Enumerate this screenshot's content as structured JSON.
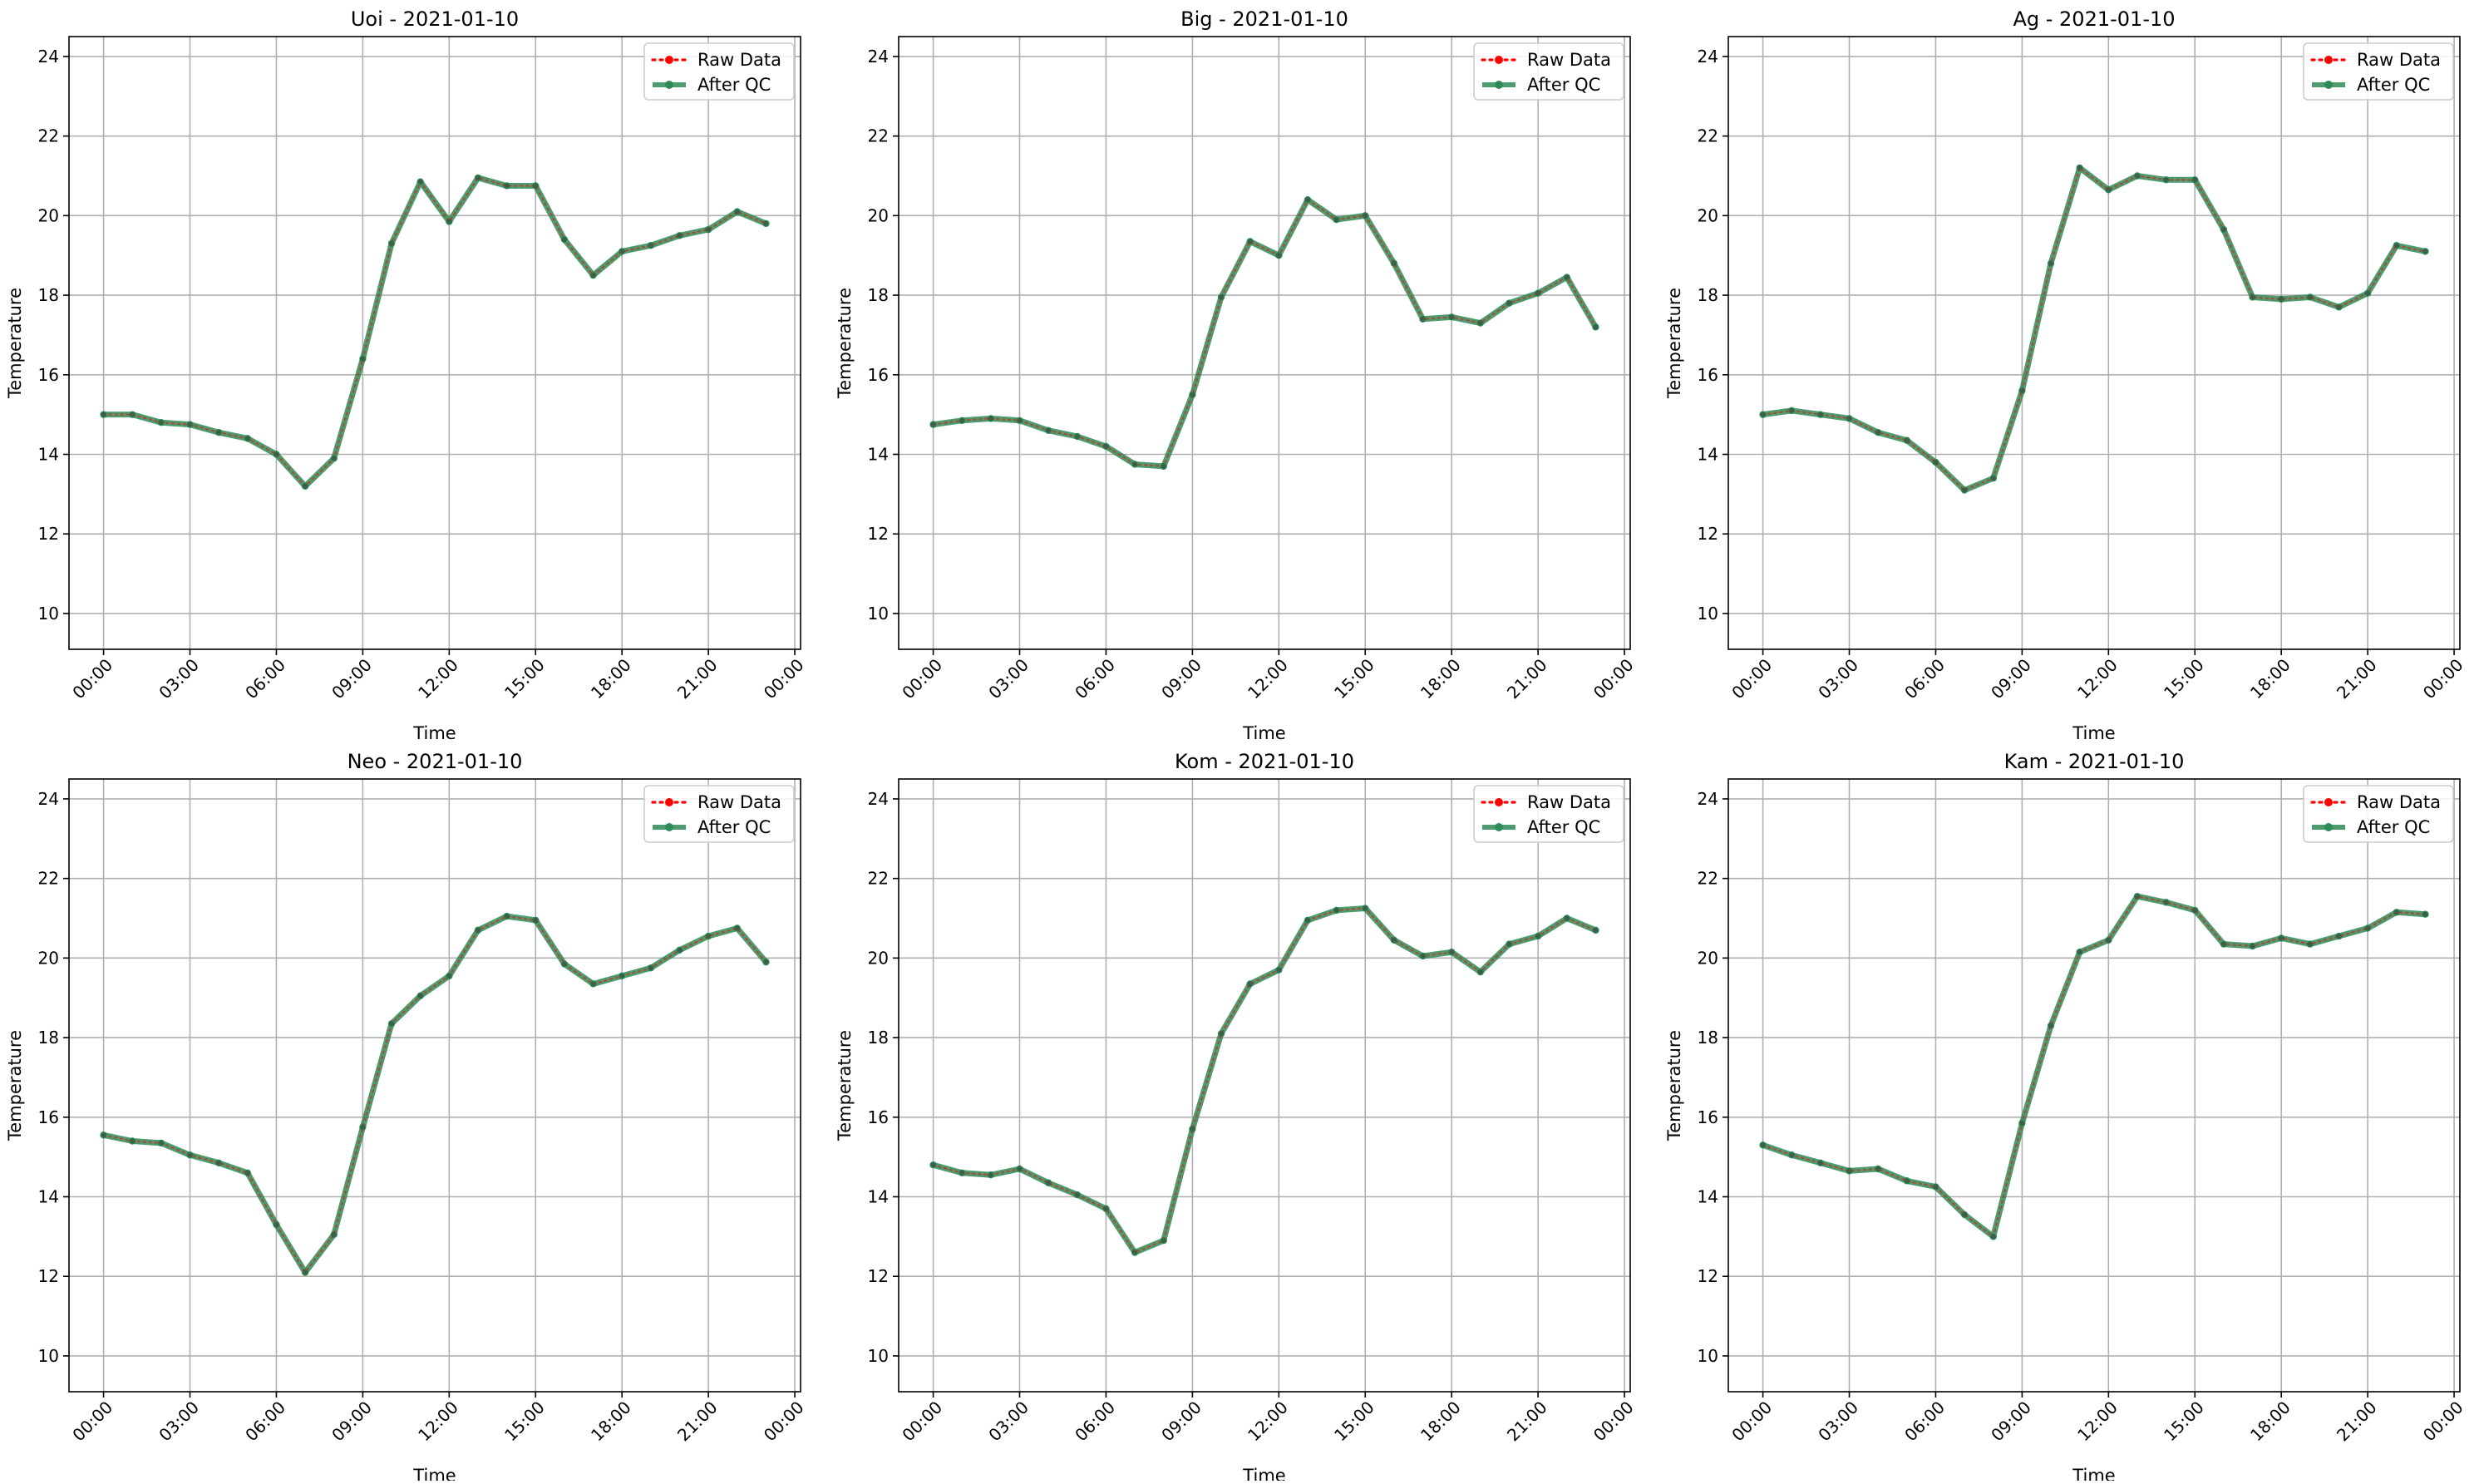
{
  "chart_data": [
    {
      "type": "line",
      "title": "Uoi - 2021-01-10",
      "xlabel": "Time",
      "ylabel": "Temperature",
      "ylim": [
        9.1,
        24.5
      ],
      "yticks": [
        10,
        12,
        14,
        16,
        18,
        20,
        22,
        24
      ],
      "xticks": [
        "00:00",
        "03:00",
        "06:00",
        "09:00",
        "12:00",
        "15:00",
        "18:00",
        "21:00",
        "00:00"
      ],
      "xlim_hours": [
        -1.2,
        24.2
      ],
      "x_hours": [
        0,
        1,
        2,
        3,
        4,
        5,
        6,
        7,
        8,
        9,
        10,
        11,
        12,
        13,
        14,
        15,
        16,
        17,
        18,
        19,
        20,
        21,
        22,
        23
      ],
      "grid": true,
      "legend": "top-right",
      "series": [
        {
          "name": "Raw Data",
          "color": "#ff0000",
          "style": "dotted",
          "values": [
            15.0,
            15.0,
            14.8,
            14.75,
            14.55,
            14.4,
            14.0,
            13.2,
            13.9,
            16.4,
            19.3,
            20.85,
            19.85,
            20.95,
            20.75,
            20.75,
            19.4,
            18.5,
            19.1,
            19.25,
            19.5,
            19.65,
            20.1,
            19.8
          ]
        },
        {
          "name": "After QC",
          "color": "#2e8b57",
          "style": "solid",
          "values": [
            15.0,
            15.0,
            14.8,
            14.75,
            14.55,
            14.4,
            14.0,
            13.2,
            13.9,
            16.4,
            19.3,
            20.85,
            19.85,
            20.95,
            20.75,
            20.75,
            19.4,
            18.5,
            19.1,
            19.25,
            19.5,
            19.65,
            20.1,
            19.8
          ]
        }
      ]
    },
    {
      "type": "line",
      "title": "Big - 2021-01-10",
      "xlabel": "Time",
      "ylabel": "Temperature",
      "ylim": [
        9.1,
        24.5
      ],
      "yticks": [
        10,
        12,
        14,
        16,
        18,
        20,
        22,
        24
      ],
      "xticks": [
        "00:00",
        "03:00",
        "06:00",
        "09:00",
        "12:00",
        "15:00",
        "18:00",
        "21:00",
        "00:00"
      ],
      "xlim_hours": [
        -1.2,
        24.2
      ],
      "x_hours": [
        0,
        1,
        2,
        3,
        4,
        5,
        6,
        7,
        8,
        9,
        10,
        11,
        12,
        13,
        14,
        15,
        16,
        17,
        18,
        19,
        20,
        21,
        22,
        23
      ],
      "grid": true,
      "legend": "top-right",
      "series": [
        {
          "name": "Raw Data",
          "color": "#ff0000",
          "style": "dotted",
          "values": [
            14.75,
            14.85,
            14.9,
            14.85,
            14.6,
            14.45,
            14.2,
            13.75,
            13.7,
            15.5,
            17.95,
            19.35,
            19.0,
            20.4,
            19.9,
            20.0,
            18.8,
            17.4,
            17.45,
            17.3,
            17.8,
            18.05,
            18.45,
            17.2
          ]
        },
        {
          "name": "After QC",
          "color": "#2e8b57",
          "style": "solid",
          "values": [
            14.75,
            14.85,
            14.9,
            14.85,
            14.6,
            14.45,
            14.2,
            13.75,
            13.7,
            15.5,
            17.95,
            19.35,
            19.0,
            20.4,
            19.9,
            20.0,
            18.8,
            17.4,
            17.45,
            17.3,
            17.8,
            18.05,
            18.45,
            17.2
          ]
        }
      ]
    },
    {
      "type": "line",
      "title": "Ag - 2021-01-10",
      "xlabel": "Time",
      "ylabel": "Temperature",
      "ylim": [
        9.1,
        24.5
      ],
      "yticks": [
        10,
        12,
        14,
        16,
        18,
        20,
        22,
        24
      ],
      "xticks": [
        "00:00",
        "03:00",
        "06:00",
        "09:00",
        "12:00",
        "15:00",
        "18:00",
        "21:00",
        "00:00"
      ],
      "xlim_hours": [
        -1.2,
        24.2
      ],
      "x_hours": [
        0,
        1,
        2,
        3,
        4,
        5,
        6,
        7,
        8,
        9,
        10,
        11,
        12,
        13,
        14,
        15,
        16,
        17,
        18,
        19,
        20,
        21,
        22,
        23
      ],
      "grid": true,
      "legend": "top-right",
      "series": [
        {
          "name": "Raw Data",
          "color": "#ff0000",
          "style": "dotted",
          "values": [
            15.0,
            15.1,
            15.0,
            14.9,
            14.55,
            14.35,
            13.8,
            13.1,
            13.4,
            15.6,
            18.8,
            21.2,
            20.65,
            21.0,
            20.9,
            20.9,
            19.65,
            17.95,
            17.9,
            17.95,
            17.7,
            18.05,
            19.25,
            19.1
          ]
        },
        {
          "name": "After QC",
          "color": "#2e8b57",
          "style": "solid",
          "values": [
            15.0,
            15.1,
            15.0,
            14.9,
            14.55,
            14.35,
            13.8,
            13.1,
            13.4,
            15.6,
            18.8,
            21.2,
            20.65,
            21.0,
            20.9,
            20.9,
            19.65,
            17.95,
            17.9,
            17.95,
            17.7,
            18.05,
            19.25,
            19.1
          ]
        }
      ]
    },
    {
      "type": "line",
      "title": "Neo - 2021-01-10",
      "xlabel": "Time",
      "ylabel": "Temperature",
      "ylim": [
        9.1,
        24.5
      ],
      "yticks": [
        10,
        12,
        14,
        16,
        18,
        20,
        22,
        24
      ],
      "xticks": [
        "00:00",
        "03:00",
        "06:00",
        "09:00",
        "12:00",
        "15:00",
        "18:00",
        "21:00",
        "00:00"
      ],
      "xlim_hours": [
        -1.2,
        24.2
      ],
      "x_hours": [
        0,
        1,
        2,
        3,
        4,
        5,
        6,
        7,
        8,
        9,
        10,
        11,
        12,
        13,
        14,
        15,
        16,
        17,
        18,
        19,
        20,
        21,
        22,
        23
      ],
      "grid": true,
      "legend": "top-right",
      "series": [
        {
          "name": "Raw Data",
          "color": "#ff0000",
          "style": "dotted",
          "values": [
            15.55,
            15.4,
            15.35,
            15.05,
            14.85,
            14.6,
            13.3,
            12.1,
            13.05,
            15.75,
            18.35,
            19.05,
            19.55,
            20.7,
            21.05,
            20.95,
            19.85,
            19.35,
            19.55,
            19.75,
            20.2,
            20.55,
            20.75,
            19.9
          ]
        },
        {
          "name": "After QC",
          "color": "#2e8b57",
          "style": "solid",
          "values": [
            15.55,
            15.4,
            15.35,
            15.05,
            14.85,
            14.6,
            13.3,
            12.1,
            13.05,
            15.75,
            18.35,
            19.05,
            19.55,
            20.7,
            21.05,
            20.95,
            19.85,
            19.35,
            19.55,
            19.75,
            20.2,
            20.55,
            20.75,
            19.9
          ]
        }
      ]
    },
    {
      "type": "line",
      "title": "Kom - 2021-01-10",
      "xlabel": "Time",
      "ylabel": "Temperature",
      "ylim": [
        9.1,
        24.5
      ],
      "yticks": [
        10,
        12,
        14,
        16,
        18,
        20,
        22,
        24
      ],
      "xticks": [
        "00:00",
        "03:00",
        "06:00",
        "09:00",
        "12:00",
        "15:00",
        "18:00",
        "21:00",
        "00:00"
      ],
      "xlim_hours": [
        -1.2,
        24.2
      ],
      "x_hours": [
        0,
        1,
        2,
        3,
        4,
        5,
        6,
        7,
        8,
        9,
        10,
        11,
        12,
        13,
        14,
        15,
        16,
        17,
        18,
        19,
        20,
        21,
        22,
        23
      ],
      "grid": true,
      "legend": "top-right",
      "series": [
        {
          "name": "Raw Data",
          "color": "#ff0000",
          "style": "dotted",
          "values": [
            14.8,
            14.6,
            14.55,
            14.7,
            14.35,
            14.05,
            13.7,
            12.6,
            12.9,
            15.7,
            18.1,
            19.35,
            19.7,
            20.95,
            21.2,
            21.25,
            20.45,
            20.05,
            20.15,
            19.65,
            20.35,
            20.55,
            21.0,
            20.7
          ]
        },
        {
          "name": "After QC",
          "color": "#2e8b57",
          "style": "solid",
          "values": [
            14.8,
            14.6,
            14.55,
            14.7,
            14.35,
            14.05,
            13.7,
            12.6,
            12.9,
            15.7,
            18.1,
            19.35,
            19.7,
            20.95,
            21.2,
            21.25,
            20.45,
            20.05,
            20.15,
            19.65,
            20.35,
            20.55,
            21.0,
            20.7
          ]
        }
      ]
    },
    {
      "type": "line",
      "title": "Kam - 2021-01-10",
      "xlabel": "Time",
      "ylabel": "Temperature",
      "ylim": [
        9.1,
        24.5
      ],
      "yticks": [
        10,
        12,
        14,
        16,
        18,
        20,
        22,
        24
      ],
      "xticks": [
        "00:00",
        "03:00",
        "06:00",
        "09:00",
        "12:00",
        "15:00",
        "18:00",
        "21:00",
        "00:00"
      ],
      "xlim_hours": [
        -1.2,
        24.2
      ],
      "x_hours": [
        0,
        1,
        2,
        3,
        4,
        5,
        6,
        7,
        8,
        9,
        10,
        11,
        12,
        13,
        14,
        15,
        16,
        17,
        18,
        19,
        20,
        21,
        22,
        23
      ],
      "grid": true,
      "legend": "top-right",
      "series": [
        {
          "name": "Raw Data",
          "color": "#ff0000",
          "style": "dotted",
          "values": [
            15.3,
            15.05,
            14.85,
            14.65,
            14.7,
            14.4,
            14.25,
            13.55,
            13.0,
            15.85,
            18.3,
            20.15,
            20.45,
            21.55,
            21.4,
            21.2,
            20.35,
            20.3,
            20.5,
            20.35,
            20.55,
            20.75,
            21.15,
            21.1
          ]
        },
        {
          "name": "After QC",
          "color": "#2e8b57",
          "style": "solid",
          "values": [
            15.3,
            15.05,
            14.85,
            14.65,
            14.7,
            14.4,
            14.25,
            13.55,
            13.0,
            15.85,
            18.3,
            20.15,
            20.45,
            21.55,
            21.4,
            21.2,
            20.35,
            20.3,
            20.5,
            20.35,
            20.55,
            20.75,
            21.15,
            21.1
          ]
        }
      ]
    }
  ]
}
